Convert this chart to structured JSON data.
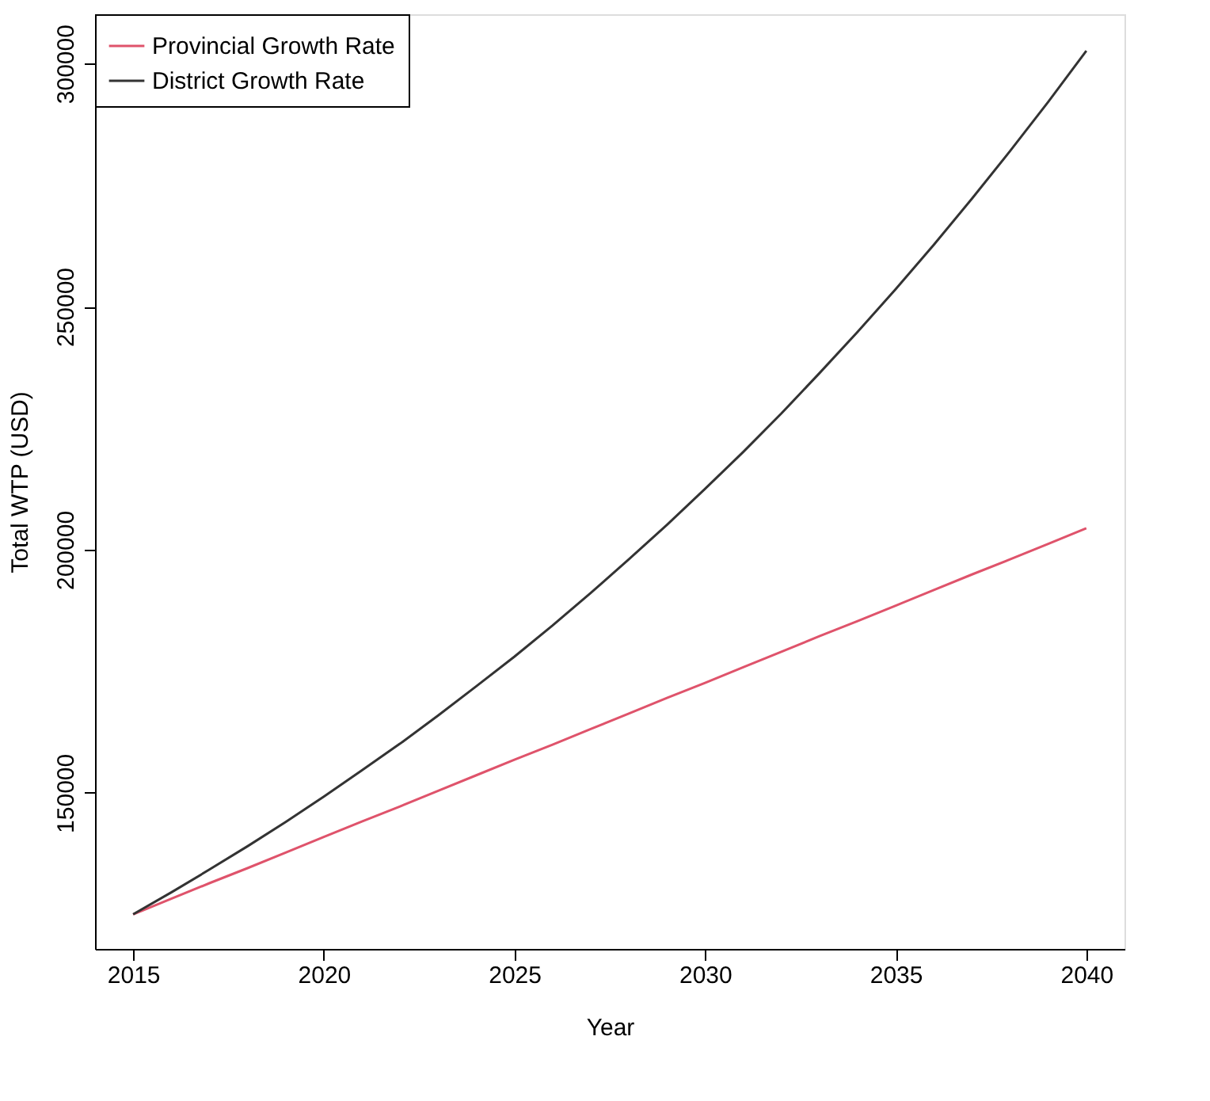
{
  "chart_data": {
    "type": "line",
    "xlabel": "Year",
    "ylabel": "Total WTP (USD)",
    "x": [
      2015,
      2016,
      2017,
      2018,
      2019,
      2020,
      2021,
      2022,
      2023,
      2024,
      2025,
      2026,
      2027,
      2028,
      2029,
      2030,
      2031,
      2032,
      2033,
      2034,
      2035,
      2036,
      2037,
      2038,
      2039,
      2040
    ],
    "series": [
      {
        "name": "Provincial Growth Rate",
        "color": "#df536b",
        "values": [
          125000,
          128200,
          131400,
          134500,
          137700,
          140900,
          144100,
          147200,
          150400,
          153600,
          156800,
          159900,
          163100,
          166300,
          169500,
          172600,
          175800,
          179000,
          182200,
          185300,
          188500,
          191700,
          194900,
          198000,
          201200,
          204400
        ]
      },
      {
        "name": "District Growth Rate",
        "color": "#333333",
        "values": [
          125000,
          129500,
          134200,
          139000,
          144000,
          149200,
          154600,
          160100,
          165900,
          171900,
          178000,
          184400,
          191100,
          198000,
          205100,
          212500,
          220100,
          228000,
          236300,
          244800,
          253600,
          262700,
          272200,
          282000,
          292100,
          302600
        ]
      }
    ],
    "xlim": [
      2014,
      2041
    ],
    "xticks": [
      2015,
      2020,
      2025,
      2030,
      2035,
      2040
    ],
    "ylim": [
      117880,
      310120
    ],
    "yticks": [
      150000,
      200000,
      250000,
      300000
    ],
    "grid": false,
    "legend": "top left",
    "marker": "none",
    "line_style": "solid"
  }
}
